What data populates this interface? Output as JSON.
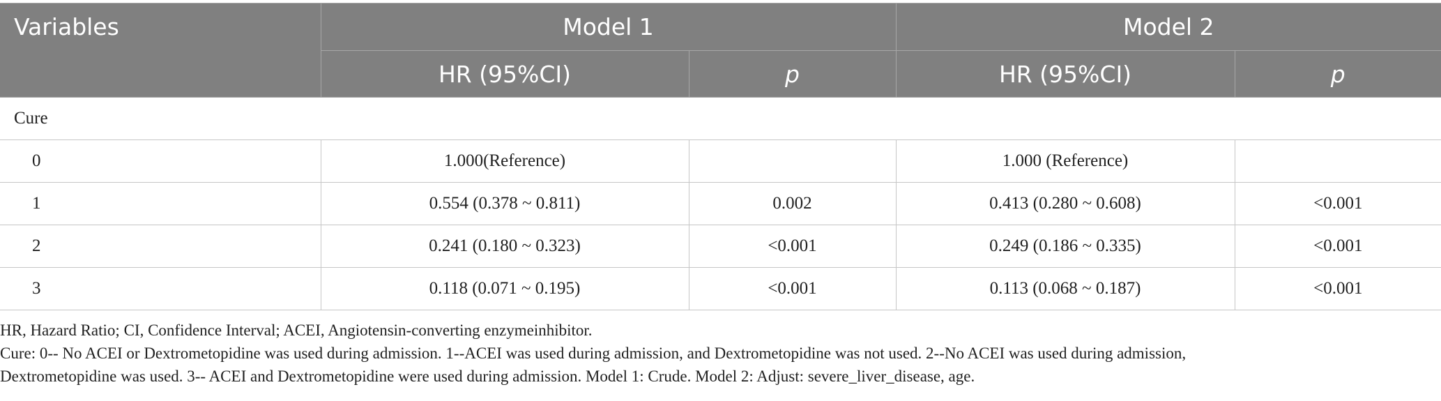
{
  "table": {
    "header": {
      "variables": "Variables",
      "model1": "Model 1",
      "model2": "Model 2",
      "hr_label": "HR (95%CI)",
      "p_label": "p"
    },
    "section": "Cure",
    "rows": [
      {
        "level": "0",
        "m1_hr": "1.000(Reference)",
        "m1_p": "",
        "m2_hr": "1.000 (Reference)",
        "m2_p": ""
      },
      {
        "level": "1",
        "m1_hr": "0.554 (0.378 ~ 0.811)",
        "m1_p": "0.002",
        "m2_hr": "0.413 (0.280 ~ 0.608)",
        "m2_p": "<0.001"
      },
      {
        "level": "2",
        "m1_hr": "0.241 (0.180 ~ 0.323)",
        "m1_p": "<0.001",
        "m2_hr": "0.249 (0.186 ~ 0.335)",
        "m2_p": "<0.001"
      },
      {
        "level": "3",
        "m1_hr": "0.118 (0.071 ~ 0.195)",
        "m1_p": "<0.001",
        "m2_hr": "0.113 (0.068 ~ 0.187)",
        "m2_p": "<0.001"
      }
    ]
  },
  "notes": {
    "line1": "HR, Hazard Ratio; CI, Confidence Interval; ACEI, Angiotensin-converting enzymeinhibitor.",
    "line2": "Cure: 0-- No ACEI or Dextrometopidine was used during admission. 1--ACEI was used during admission, and Dextrometopidine was not used. 2--No ACEI was used during admission,",
    "line3": "Dextrometopidine was used. 3-- ACEI and Dextrometopidine were used during admission. Model 1: Crude. Model 2: Adjust: severe_liver_disease, age."
  },
  "colors": {
    "header_bg": "#808080",
    "header_text": "#ffffff",
    "grid": "#c6c6c6"
  }
}
